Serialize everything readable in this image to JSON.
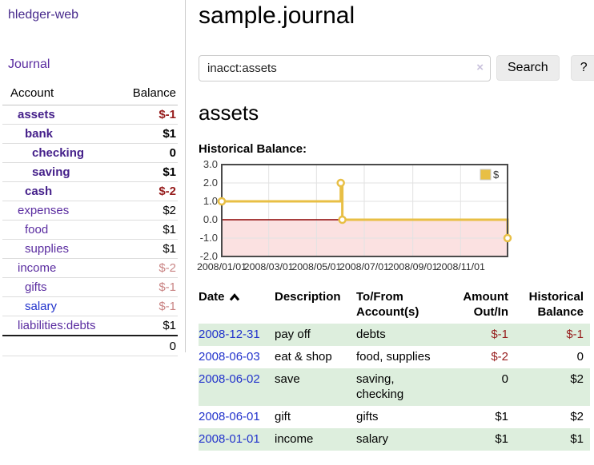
{
  "app": {
    "brand": "hledger-web",
    "nav": {
      "journal": "Journal"
    }
  },
  "sidebar": {
    "header": {
      "account": "Account",
      "balance": "Balance"
    },
    "accounts": [
      {
        "name": "assets",
        "balance": "$-1",
        "depth": 1,
        "emphasis": true,
        "balance_style": "neg"
      },
      {
        "name": "bank",
        "balance": "$1",
        "depth": 2,
        "emphasis": true,
        "balance_style": "pos"
      },
      {
        "name": "checking",
        "balance": "0",
        "depth": 3,
        "emphasis": true,
        "balance_style": "pos"
      },
      {
        "name": "saving",
        "balance": "$1",
        "depth": 3,
        "emphasis": true,
        "balance_style": "pos"
      },
      {
        "name": "cash",
        "balance": "$-2",
        "depth": 2,
        "emphasis": true,
        "balance_style": "neg"
      },
      {
        "name": "expenses",
        "balance": "$2",
        "depth": 1,
        "emphasis": false,
        "balance_style": "pos"
      },
      {
        "name": "food",
        "balance": "$1",
        "depth": 2,
        "emphasis": false,
        "balance_style": "pos"
      },
      {
        "name": "supplies",
        "balance": "$1",
        "depth": 2,
        "emphasis": false,
        "balance_style": "pos"
      },
      {
        "name": "income",
        "balance": "$-2",
        "depth": 1,
        "emphasis": false,
        "balance_style": "negsoft"
      },
      {
        "name": "gifts",
        "balance": "$-1",
        "depth": 2,
        "emphasis": false,
        "balance_style": "negsoft"
      },
      {
        "name": "salary",
        "balance": "$-1",
        "depth": 2,
        "emphasis": false,
        "balance_style": "negsoft",
        "blue_link": true
      },
      {
        "name": "liabilities:debts",
        "balance": "$1",
        "depth": 1,
        "emphasis": false,
        "balance_style": "pos"
      }
    ],
    "total": "0"
  },
  "main": {
    "title": "sample.journal",
    "search": {
      "value": "inacct:assets",
      "clear_icon": "×",
      "button_label": "Search",
      "help_label": "?"
    },
    "heading": "assets",
    "chart_label": "Historical Balance:"
  },
  "chart_data": {
    "type": "line",
    "step": true,
    "title": "Historical Balance:",
    "series": [
      {
        "name": "$",
        "x": [
          "2008-01-01",
          "2008-06-01",
          "2008-06-03",
          "2008-12-31"
        ],
        "y": [
          1,
          2,
          0,
          -1
        ]
      }
    ],
    "x_range": [
      "2008-01-01",
      "2008-12-31"
    ],
    "x_ticks": [
      "2008-01-01",
      "2008-03-01",
      "2008-05-01",
      "2008-07-01",
      "2008-09-01",
      "2008-11-01"
    ],
    "x_tick_labels": [
      "2008/01/01",
      "2008/03/01",
      "2008/05/01",
      "2008/07/01",
      "2008/09/01",
      "2008/11/01"
    ],
    "y_ticks": [
      "3.0",
      "2.0",
      "1.0",
      "0.0",
      "-1.0",
      "-2.0"
    ],
    "ylim": [
      -2,
      3
    ],
    "grid": true,
    "legend": {
      "label": "$",
      "position": "top-right"
    },
    "line_color": "#e8bf45",
    "marker_fill": "#ffffff",
    "negative_fill": "#f8c9c9",
    "zero_line_color": "#8b0000",
    "border_color": "#4a4a4a",
    "grid_color": "#e2e2e2"
  },
  "register": {
    "headers": [
      {
        "label": "Date",
        "align": "left",
        "sorted_asc": true
      },
      {
        "label": "Description",
        "align": "left"
      },
      {
        "label": "To/From\nAccount(s)",
        "align": "left"
      },
      {
        "label": "Amount\nOut/In",
        "align": "right"
      },
      {
        "label": "Historical\nBalance",
        "align": "right"
      }
    ],
    "rows": [
      {
        "date": "2008-12-31",
        "description": "pay off",
        "accounts": "debts",
        "amount": "$-1",
        "amount_neg": true,
        "balance": "$-1",
        "balance_neg": true,
        "shaded": true
      },
      {
        "date": "2008-06-03",
        "description": "eat & shop",
        "accounts": "food, supplies",
        "amount": "$-2",
        "amount_neg": true,
        "balance": "0",
        "balance_neg": false,
        "shaded": false
      },
      {
        "date": "2008-06-02",
        "description": "save",
        "accounts": "saving,\nchecking",
        "amount": "0",
        "amount_neg": false,
        "balance": "$2",
        "balance_neg": false,
        "shaded": true
      },
      {
        "date": "2008-06-01",
        "description": "gift",
        "accounts": "gifts",
        "amount": "$1",
        "amount_neg": false,
        "balance": "$2",
        "balance_neg": false,
        "shaded": false
      },
      {
        "date": "2008-01-01",
        "description": "income",
        "accounts": "salary",
        "amount": "$1",
        "amount_neg": false,
        "balance": "$1",
        "balance_neg": false,
        "shaded": true
      }
    ]
  },
  "colors": {
    "link_purple": "#5a2ca0",
    "link_purple_bold": "#45208a",
    "link_blue": "#2233cc",
    "negative_strong": "#961c1c",
    "negative_soft": "#c98484",
    "row_green": "#ddeedd",
    "chart_line": "#e8bf45"
  }
}
